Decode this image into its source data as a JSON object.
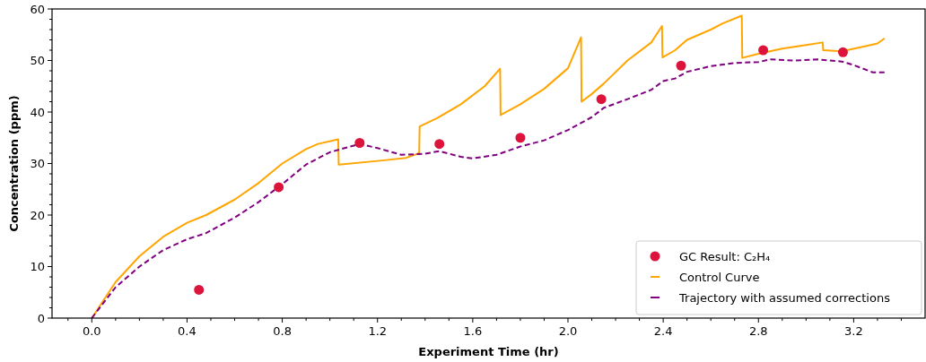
{
  "chart_data": {
    "type": "line",
    "xlabel": "Experiment Time (hr)",
    "ylabel": "Concentration (ppm)",
    "xlim": [
      -0.167,
      3.5
    ],
    "ylim": [
      0,
      60
    ],
    "xticks": [
      {
        "value": 0,
        "label": "0.0"
      },
      0.4,
      0.8,
      1.2,
      1.6,
      {
        "value": 2,
        "label": "2.0"
      },
      2.4,
      2.8,
      3.2,
      {
        "value": -0.1,
        "label": null
      },
      {
        "value": 0.1,
        "label": null
      },
      {
        "value": 0.2,
        "label": null
      },
      {
        "value": 0.3,
        "label": null
      },
      {
        "value": 0.5,
        "label": null
      },
      {
        "value": 0.6,
        "label": null
      },
      {
        "value": 0.7,
        "label": null
      },
      {
        "value": 0.9,
        "label": null
      },
      {
        "value": 1.0,
        "label": null
      },
      {
        "value": 1.1,
        "label": null
      },
      {
        "value": 1.3,
        "label": null
      },
      {
        "value": 1.4,
        "label": null
      },
      {
        "value": 1.5,
        "label": null
      },
      {
        "value": 1.7,
        "label": null
      },
      {
        "value": 1.8,
        "label": null
      },
      {
        "value": 1.9,
        "label": null
      },
      {
        "value": 2.1,
        "label": null
      },
      {
        "value": 2.2,
        "label": null
      },
      {
        "value": 2.3,
        "label": null
      },
      {
        "value": 2.5,
        "label": null
      },
      {
        "value": 2.6,
        "label": null
      },
      {
        "value": 2.7,
        "label": null
      },
      {
        "value": 2.9,
        "label": null
      },
      {
        "value": 3.0,
        "label": null
      },
      {
        "value": 3.1,
        "label": null
      },
      {
        "value": 3.3,
        "label": null
      },
      {
        "value": 3.4,
        "label": null
      }
    ],
    "yticks": [
      0,
      10,
      20,
      30,
      40,
      50,
      60,
      {
        "value": 2,
        "label": null
      },
      {
        "value": 4,
        "label": null
      },
      {
        "value": 6,
        "label": null
      },
      {
        "value": 8,
        "label": null
      },
      {
        "value": 12,
        "label": null
      },
      {
        "value": 14,
        "label": null
      },
      {
        "value": 16,
        "label": null
      },
      {
        "value": 18,
        "label": null
      },
      {
        "value": 22,
        "label": null
      },
      {
        "value": 24,
        "label": null
      },
      {
        "value": 26,
        "label": null
      },
      {
        "value": 28,
        "label": null
      },
      {
        "value": 32,
        "label": null
      },
      {
        "value": 34,
        "label": null
      },
      {
        "value": 36,
        "label": null
      },
      {
        "value": 38,
        "label": null
      },
      {
        "value": 42,
        "label": null
      },
      {
        "value": 44,
        "label": null
      },
      {
        "value": 46,
        "label": null
      },
      {
        "value": 48,
        "label": null
      },
      {
        "value": 52,
        "label": null
      },
      {
        "value": 54,
        "label": null
      },
      {
        "value": 56,
        "label": null
      },
      {
        "value": 58,
        "label": null
      }
    ],
    "grid": false,
    "legend": "bottom right",
    "series": [
      {
        "name": "GC Result: C₂H₄",
        "type": "scatter",
        "marker": "circle",
        "color": "#dc143c",
        "x": [
          0.45,
          0.785,
          1.125,
          1.46,
          1.8,
          2.14,
          2.475,
          2.82,
          3.155
        ],
        "values": [
          5.5,
          25.4,
          34,
          33.8,
          35,
          42.5,
          49,
          52,
          51.6
        ]
      },
      {
        "name": "Control Curve",
        "line_style": "solid",
        "color": "#ffa500",
        "x": [
          0,
          0.1,
          0.2,
          0.3,
          0.4,
          0.48,
          0.6,
          0.7,
          0.8,
          0.9,
          0.95,
          1.035,
          1.037,
          1.2,
          1.32,
          1.375,
          1.377,
          1.45,
          1.55,
          1.65,
          1.715,
          1.717,
          1.8,
          1.9,
          2.0,
          2.055,
          2.057,
          2.1,
          2.15,
          2.25,
          2.35,
          2.395,
          2.397,
          2.45,
          2.5,
          2.6,
          2.65,
          2.73,
          2.732,
          2.8,
          2.9,
          3.0,
          3.07,
          3.072,
          3.15,
          3.25,
          3.3,
          3.33
        ],
        "values": [
          0,
          7,
          12,
          15.8,
          18.5,
          20,
          23,
          26.2,
          30,
          32.8,
          33.8,
          34.7,
          29.8,
          30.5,
          31.1,
          32,
          37.2,
          38.8,
          41.5,
          45,
          48.4,
          39.4,
          41.5,
          44.5,
          48.5,
          54.5,
          42,
          43.5,
          45.5,
          50,
          53.5,
          56.7,
          50.6,
          52,
          54,
          56,
          57.2,
          58.7,
          50.5,
          51.3,
          52.3,
          53,
          53.5,
          52,
          51.8,
          52.8,
          53.3,
          54.3
        ]
      },
      {
        "name": "Trajectory with assumed corrections",
        "line_style": "dashed",
        "color": "#800080",
        "x": [
          0,
          0.1,
          0.2,
          0.3,
          0.4,
          0.48,
          0.6,
          0.7,
          0.8,
          0.9,
          1.0,
          1.125,
          1.2,
          1.3,
          1.4,
          1.46,
          1.55,
          1.6,
          1.7,
          1.8,
          1.9,
          2.0,
          2.1,
          2.15,
          2.25,
          2.35,
          2.4,
          2.45,
          2.5,
          2.6,
          2.7,
          2.8,
          2.85,
          2.95,
          3.05,
          3.15,
          3.2,
          3.28,
          3.33
        ],
        "values": [
          0,
          6,
          10,
          13.2,
          15.3,
          16.5,
          19.5,
          22.5,
          26,
          29.8,
          32.2,
          33.8,
          33,
          31.7,
          31.9,
          32.4,
          31.3,
          31,
          31.7,
          33.3,
          34.5,
          36.5,
          39,
          40.8,
          42.5,
          44.3,
          46,
          46.5,
          47.8,
          48.9,
          49.5,
          49.7,
          50.2,
          50,
          50.2,
          49.8,
          49.1,
          47.7,
          47.7
        ]
      }
    ]
  }
}
